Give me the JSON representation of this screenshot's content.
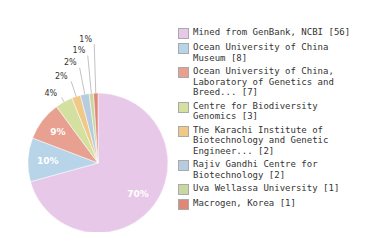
{
  "chart_data": {
    "type": "pie",
    "categories": [
      "Mined from GenBank, NCBI [56]",
      "Ocean University of China\nMuseum [8]",
      "Ocean University of China,\nLaboratory of Genetics and\nBreed... [7]",
      "Centre for Biodiversity\nGenomics [3]",
      "The Karachi Institute of\nBiotechnology and Genetic\nEngineer... [2]",
      "Rajiv Gandhi Centre for\nBiotechnology [2]",
      "Uva Wellassa University [1]",
      "Macrogen, Korea [1]"
    ],
    "values": [
      70,
      10,
      9,
      4,
      2,
      2,
      1,
      1
    ],
    "value_labels": [
      "70%",
      "10%",
      "9%",
      "4%",
      "2%",
      "2%",
      "1%",
      "1%"
    ],
    "colors": [
      "#e8c8e8",
      "#b8d4e8",
      "#e8a090",
      "#d4e0a0",
      "#f0c888",
      "#b8cce0",
      "#c8d8a0",
      "#e08878"
    ],
    "data_labels": true,
    "legend": "right"
  }
}
